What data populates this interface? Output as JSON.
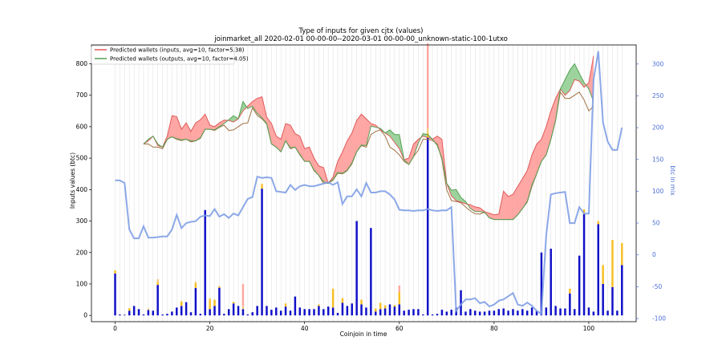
{
  "chart_data": {
    "type": "line",
    "title": "Type of inputs for given cjtx (values)",
    "subtitle": "joinmarket_all 2020-02-01 00-00-00--2020-03-01 00-00-00_unknown-static-100-1utxo",
    "xlabel": "Coinjoin in time",
    "ylabel": "Inputs values (btc)",
    "y2label": "btc in mix",
    "xlim": [
      -5,
      110
    ],
    "ylim": [
      -20,
      860
    ],
    "y2lim": [
      -105,
      330
    ],
    "xticks": [
      0,
      20,
      40,
      60,
      80,
      100
    ],
    "yticks": [
      0,
      100,
      200,
      300,
      400,
      500,
      600,
      700,
      800
    ],
    "y2ticks": [
      -100,
      -50,
      0,
      50,
      100,
      150,
      200,
      250,
      300
    ],
    "grid": "vertical",
    "legend_position": "top-left",
    "colors": {
      "inputs_line": "#e05a5a",
      "inputs_fill": "#ff8a85",
      "outputs_line": "#55a055",
      "outputs_fill": "#7cc47c",
      "mix_line": "#7f9fe6",
      "bar_main": "#1010c8",
      "bar_stack_1": "#f7b500",
      "bar_stack_2": "#f1c36b",
      "bar_stack_3": "#ff9a90",
      "bar_stack_4": "#b9a6e6",
      "right_axis": "#4a6fd6"
    },
    "series": [
      {
        "name": "Predicted wallets (inputs, avg=10, factor=5.38)",
        "x": [
          6,
          7,
          8,
          9,
          10,
          11,
          12,
          13,
          14,
          15,
          16,
          17,
          18,
          19,
          20,
          21,
          22,
          23,
          24,
          25,
          26,
          27,
          28,
          29,
          30,
          31,
          32,
          33,
          34,
          35,
          36,
          37,
          38,
          39,
          40,
          41,
          42,
          43,
          44,
          45,
          46,
          47,
          48,
          49,
          50,
          51,
          52,
          53,
          54,
          55,
          56,
          57,
          58,
          59,
          60,
          61,
          62,
          63,
          64,
          65,
          66,
          67,
          68,
          69,
          70,
          71,
          72,
          73,
          74,
          75,
          76,
          77,
          78,
          79,
          80,
          81,
          82,
          83,
          84,
          85,
          86,
          87,
          88,
          89,
          90,
          91,
          92,
          93,
          94,
          95,
          96,
          97,
          98,
          99,
          100,
          101
        ],
        "values": [
          545,
          555,
          570,
          540,
          535,
          570,
          635,
          632,
          592,
          612,
          585,
          612,
          622,
          640,
          605,
          600,
          612,
          621,
          620,
          615,
          625,
          650,
          665,
          680,
          690,
          695,
          630,
          610,
          570,
          560,
          610,
          605,
          578,
          570,
          530,
          535,
          500,
          475,
          470,
          420,
          440,
          490,
          520,
          555,
          580,
          620,
          640,
          625,
          610,
          605,
          590,
          580,
          570,
          550,
          530,
          495,
          500,
          545,
          560,
          570,
          565,
          560,
          570,
          560,
          420,
          380,
          365,
          360,
          355,
          352,
          345,
          342,
          330,
          325,
          320,
          322,
          395,
          378,
          385,
          410,
          435,
          460,
          510,
          545,
          560,
          600,
          650,
          690,
          720,
          700,
          715,
          750,
          745,
          725,
          740,
          825
        ],
        "lower": [
          545,
          545,
          535,
          535,
          530,
          560,
          568,
          560,
          556,
          560,
          552,
          555,
          563,
          592,
          592,
          588,
          598,
          605,
          588,
          590,
          600,
          610,
          612,
          660,
          635,
          625,
          608,
          545,
          535,
          520,
          555,
          530,
          535,
          510,
          490,
          490,
          460,
          445,
          420,
          420,
          430,
          452,
          450,
          460,
          482,
          520,
          540,
          535,
          575,
          585,
          590,
          570,
          535,
          525,
          510,
          490,
          480,
          505,
          525,
          560,
          560,
          556,
          545,
          495,
          400,
          365,
          362,
          358,
          345,
          332,
          323,
          322,
          328,
          310,
          305,
          305,
          305,
          305,
          305,
          320,
          340,
          360,
          410,
          450,
          490,
          510,
          560,
          620,
          710,
          690,
          690,
          700,
          710,
          685,
          650,
          665
        ]
      },
      {
        "name": "Predicted wallets (outputs, avg=10, factor=4.05)",
        "x": [
          6,
          7,
          8,
          9,
          10,
          11,
          12,
          13,
          14,
          15,
          16,
          17,
          18,
          19,
          20,
          21,
          22,
          23,
          24,
          25,
          26,
          27,
          28,
          29,
          30,
          31,
          32,
          33,
          34,
          35,
          36,
          37,
          38,
          39,
          40,
          41,
          42,
          43,
          44,
          45,
          46,
          47,
          48,
          49,
          50,
          51,
          52,
          53,
          54,
          55,
          56,
          57,
          58,
          59,
          60,
          61,
          62,
          63,
          64,
          65,
          66,
          67,
          68,
          69,
          70,
          71,
          72,
          73,
          74,
          75,
          76,
          77,
          78,
          79,
          80,
          81,
          82,
          83,
          84,
          85,
          86,
          87,
          88,
          89,
          90,
          91,
          92,
          93,
          94,
          95,
          96,
          97,
          98,
          99,
          100,
          101
        ],
        "values": [
          545,
          560,
          570,
          545,
          535,
          560,
          568,
          562,
          558,
          560,
          555,
          555,
          565,
          592,
          592,
          590,
          600,
          610,
          622,
          635,
          625,
          680,
          658,
          665,
          642,
          628,
          610,
          545,
          535,
          520,
          555,
          533,
          535,
          512,
          490,
          490,
          462,
          445,
          425,
          420,
          432,
          455,
          452,
          462,
          485,
          520,
          542,
          540,
          602,
          598,
          595,
          580,
          590,
          575,
          575,
          495,
          480,
          505,
          548,
          578,
          575,
          560,
          540,
          500,
          420,
          398,
          400,
          375,
          362,
          340,
          330,
          330,
          328,
          310,
          305,
          305,
          305,
          305,
          305,
          320,
          340,
          362,
          415,
          450,
          490,
          510,
          560,
          620,
          720,
          750,
          780,
          800,
          770,
          740,
          720,
          680
        ]
      },
      {
        "name": "btc in mix",
        "axis": "right",
        "x": [
          0,
          1,
          2,
          3,
          4,
          5,
          6,
          7,
          8,
          9,
          10,
          11,
          12,
          13,
          14,
          15,
          16,
          17,
          18,
          19,
          20,
          21,
          22,
          23,
          24,
          25,
          26,
          27,
          28,
          29,
          30,
          31,
          32,
          33,
          34,
          35,
          36,
          37,
          38,
          39,
          40,
          41,
          42,
          43,
          44,
          45,
          46,
          47,
          48,
          49,
          50,
          51,
          52,
          53,
          54,
          55,
          56,
          57,
          58,
          59,
          60,
          61,
          62,
          63,
          64,
          65,
          66,
          67,
          68,
          69,
          70,
          71,
          72,
          73,
          74,
          75,
          76,
          77,
          78,
          79,
          80,
          81,
          82,
          83,
          84,
          85,
          86,
          87,
          88,
          89,
          90,
          91,
          92,
          93,
          94,
          95,
          96,
          97,
          98,
          99,
          100,
          101,
          102,
          103,
          104,
          105,
          106,
          107
        ],
        "values": [
          117,
          117,
          113,
          40,
          26,
          26,
          45,
          27,
          27,
          28,
          29,
          29,
          40,
          63,
          42,
          50,
          52,
          53,
          60,
          62,
          61,
          72,
          60,
          64,
          58,
          65,
          62,
          75,
          88,
          91,
          123,
          121,
          122,
          121,
          100,
          99,
          98,
          110,
          102,
          108,
          110,
          108,
          108,
          110,
          112,
          114,
          110,
          114,
          80,
          92,
          92,
          103,
          92,
          113,
          98,
          98,
          100,
          100,
          95,
          87,
          71,
          70,
          70,
          69,
          70,
          70,
          72,
          70,
          69,
          70,
          70,
          75,
          -88,
          -78,
          -70,
          -70,
          -68,
          -76,
          -74,
          -81,
          -78,
          -72,
          -70,
          -65,
          -60,
          -78,
          -80,
          -75,
          -80,
          -88,
          -93,
          30,
          95,
          97,
          98,
          99,
          50,
          50,
          75,
          65,
          65,
          275,
          320,
          208,
          178,
          165,
          165,
          200
        ]
      }
    ],
    "bars": {
      "x": [
        0,
        1,
        2,
        3,
        4,
        5,
        6,
        7,
        8,
        9,
        10,
        11,
        12,
        13,
        14,
        15,
        16,
        17,
        18,
        19,
        20,
        21,
        22,
        23,
        24,
        25,
        26,
        27,
        28,
        29,
        30,
        31,
        32,
        33,
        34,
        35,
        36,
        37,
        38,
        39,
        40,
        41,
        42,
        43,
        44,
        45,
        46,
        47,
        48,
        49,
        50,
        51,
        52,
        53,
        54,
        55,
        56,
        57,
        58,
        59,
        60,
        61,
        62,
        63,
        64,
        65,
        66,
        67,
        68,
        69,
        70,
        71,
        72,
        73,
        74,
        75,
        76,
        77,
        78,
        79,
        80,
        81,
        82,
        83,
        84,
        85,
        86,
        87,
        88,
        89,
        90,
        91,
        92,
        93,
        94,
        95,
        96,
        97,
        98,
        99,
        100,
        101,
        102,
        103,
        104,
        105,
        106,
        107
      ],
      "main": [
        133,
        3,
        2,
        15,
        30,
        20,
        3,
        17,
        15,
        97,
        3,
        5,
        12,
        25,
        30,
        42,
        10,
        87,
        5,
        335,
        20,
        30,
        88,
        5,
        20,
        38,
        30,
        20,
        3,
        10,
        30,
        403,
        30,
        18,
        25,
        15,
        28,
        15,
        60,
        25,
        20,
        20,
        20,
        30,
        20,
        28,
        25,
        8,
        40,
        30,
        38,
        300,
        35,
        25,
        278,
        12,
        20,
        22,
        35,
        28,
        35,
        15,
        18,
        20,
        20,
        3,
        565,
        3,
        5,
        18,
        12,
        18,
        25,
        80,
        12,
        20,
        15,
        12,
        12,
        15,
        15,
        20,
        22,
        15,
        20,
        15,
        20,
        15,
        25,
        15,
        200,
        25,
        212,
        30,
        22,
        22,
        70,
        20,
        190,
        322,
        25,
        12,
        290,
        100,
        15,
        90,
        15,
        160
      ],
      "stack_1": [
        10,
        0,
        0,
        8,
        0,
        0,
        0,
        0,
        0,
        8,
        0,
        0,
        0,
        0,
        15,
        0,
        0,
        15,
        0,
        0,
        30,
        20,
        5,
        0,
        0,
        5,
        0,
        0,
        0,
        0,
        0,
        15,
        0,
        0,
        0,
        0,
        10,
        0,
        0,
        0,
        0,
        0,
        0,
        5,
        0,
        0,
        60,
        0,
        15,
        0,
        0,
        0,
        15,
        0,
        0,
        10,
        20,
        10,
        0,
        5,
        40,
        0,
        0,
        0,
        0,
        0,
        15,
        0,
        0,
        0,
        0,
        0,
        0,
        0,
        0,
        0,
        0,
        0,
        0,
        0,
        0,
        0,
        0,
        0,
        0,
        0,
        0,
        0,
        0,
        0,
        0,
        0,
        0,
        0,
        0,
        0,
        15,
        0,
        0,
        15,
        0,
        0,
        10,
        60,
        0,
        150,
        0,
        70
      ],
      "stack_2": [
        0,
        0,
        0,
        0,
        0,
        0,
        0,
        5,
        0,
        10,
        0,
        0,
        0,
        0,
        0,
        0,
        0,
        5,
        0,
        0,
        5,
        0,
        0,
        0,
        0,
        0,
        0,
        10,
        0,
        0,
        0,
        0,
        0,
        0,
        0,
        0,
        0,
        0,
        0,
        0,
        0,
        0,
        0,
        0,
        0,
        0,
        0,
        0,
        0,
        0,
        0,
        0,
        0,
        0,
        0,
        0,
        0,
        0,
        0,
        0,
        0,
        0,
        0,
        0,
        0,
        0,
        15,
        0,
        0,
        0,
        0,
        0,
        0,
        0,
        0,
        0,
        0,
        0,
        0,
        0,
        0,
        0,
        0,
        0,
        0,
        0,
        0,
        0,
        0,
        0,
        0,
        0,
        0,
        0,
        0,
        0,
        0,
        0,
        0,
        0,
        0,
        0,
        0,
        0,
        0,
        0,
        0,
        0
      ],
      "stack_3": [
        0,
        0,
        0,
        0,
        0,
        0,
        0,
        0,
        0,
        0,
        0,
        0,
        0,
        0,
        0,
        0,
        0,
        0,
        0,
        0,
        0,
        0,
        0,
        0,
        0,
        0,
        0,
        70,
        0,
        0,
        0,
        0,
        0,
        0,
        0,
        0,
        0,
        0,
        0,
        0,
        0,
        0,
        0,
        0,
        0,
        0,
        0,
        0,
        0,
        0,
        0,
        0,
        0,
        0,
        0,
        0,
        0,
        0,
        0,
        0,
        20,
        0,
        0,
        0,
        0,
        0,
        270,
        0,
        0,
        0,
        0,
        0,
        0,
        0,
        0,
        0,
        0,
        0,
        0,
        0,
        0,
        0,
        0,
        0,
        0,
        0,
        0,
        0,
        0,
        0,
        0,
        0,
        0,
        0,
        0,
        0,
        0,
        0,
        0,
        0,
        0,
        0,
        0,
        0,
        0,
        0,
        0,
        0
      ],
      "stack_4": [
        0,
        0,
        0,
        0,
        0,
        0,
        0,
        0,
        0,
        0,
        0,
        0,
        0,
        0,
        0,
        0,
        0,
        0,
        0,
        0,
        0,
        0,
        0,
        0,
        0,
        0,
        0,
        0,
        0,
        0,
        0,
        0,
        0,
        0,
        0,
        0,
        0,
        0,
        0,
        0,
        0,
        0,
        0,
        0,
        0,
        0,
        0,
        0,
        0,
        0,
        0,
        0,
        0,
        0,
        0,
        0,
        0,
        0,
        0,
        0,
        0,
        0,
        0,
        0,
        0,
        0,
        0,
        0,
        0,
        0,
        0,
        0,
        0,
        0,
        0,
        0,
        0,
        0,
        0,
        0,
        0,
        0,
        0,
        0,
        0,
        0,
        0,
        0,
        0,
        0,
        0,
        0,
        0,
        0,
        0,
        0,
        0,
        0,
        0,
        0,
        0,
        0,
        0,
        0,
        0,
        0,
        0,
        0
      ]
    }
  }
}
